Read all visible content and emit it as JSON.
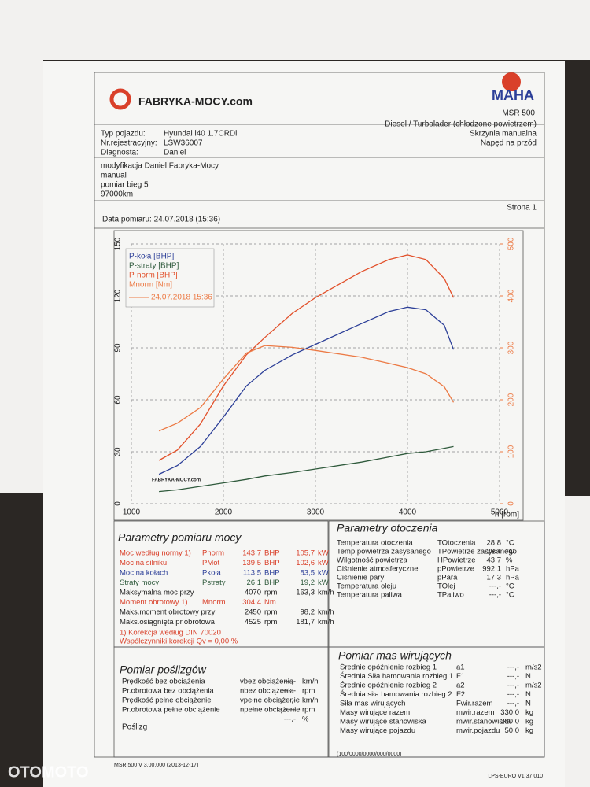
{
  "header": {
    "logo": "FABRYKA-MOCY.com",
    "brand": "MAHA",
    "model": "MSR 500"
  },
  "vehicle": {
    "rows": [
      {
        "label": "Typ pojazdu:",
        "value": "Hyundai i40 1.7CRDi"
      },
      {
        "label": "Nr.rejestracyjny:",
        "value": "LSW36007"
      },
      {
        "label": "Diagnosta:",
        "value": "Daniel"
      }
    ],
    "details": [
      "Diesel / Turbolader (chłodzone powietrzem)",
      "Skrzynia manualna",
      "Napęd na przód"
    ]
  },
  "notes": [
    "modyfikacja Daniel Fabryka-Mocy",
    "manual",
    "pomiar bieg 5",
    "97000km"
  ],
  "page": "Strona 1",
  "date": "Data pomiaru: 24.07.2018 (15:36)",
  "chart_data": {
    "type": "line",
    "xlabel": "n [rpm]",
    "x": [
      1300,
      1500,
      1750,
      2000,
      2250,
      2450,
      2750,
      3000,
      3500,
      3800,
      4000,
      4200,
      4400,
      4500
    ],
    "xlim": [
      1000,
      5000
    ],
    "xticks": [
      1000,
      2000,
      3000,
      4000,
      5000
    ],
    "ylim": [
      0,
      150
    ],
    "yticks": [
      0,
      30,
      60,
      90,
      120,
      150
    ],
    "y2lim": [
      0,
      500
    ],
    "y2ticks": [
      0,
      100,
      200,
      300,
      400,
      500
    ],
    "grid": true,
    "legend": "upper left",
    "legend_note": "24.07.2018 15:36",
    "series": [
      {
        "name": "P-koła [BHP]",
        "color": "#2c3f98",
        "values": [
          17,
          22,
          33,
          50,
          68,
          77,
          86,
          92,
          104,
          111,
          113.5,
          112,
          103,
          89
        ]
      },
      {
        "name": "P-straty [BHP]",
        "color": "#2f5a3c",
        "values": [
          7,
          8,
          10,
          12,
          14,
          16,
          18,
          20,
          24,
          27,
          29,
          30,
          32,
          33
        ]
      },
      {
        "name": "P-norm [BHP]",
        "color": "#e2502a",
        "values": [
          25,
          31,
          46,
          68,
          86,
          96,
          110,
          119,
          134,
          141,
          143.7,
          141,
          130,
          119
        ]
      },
      {
        "name": "Mnorm [Nm]",
        "color": "#ec7a45",
        "axis": "y2",
        "values": [
          140,
          155,
          185,
          240,
          290,
          304.4,
          301,
          295,
          282,
          270,
          262,
          250,
          225,
          195
        ]
      }
    ]
  },
  "power": {
    "title": "Parametry pomiaru mocy",
    "rows": [
      {
        "label": "Moc według normy 1)",
        "symbol": "Pnorm",
        "value": "143,7",
        "unit": "BHP",
        "value2": "105,7",
        "unit2": "kW",
        "color": "#d9402a"
      },
      {
        "label": "Moc na silniku",
        "symbol": "PMot",
        "value": "139,5",
        "unit": "BHP",
        "value2": "102,6",
        "unit2": "kW",
        "color": "#d9402a"
      },
      {
        "label": "Moc na kołach",
        "symbol": "Pkoła",
        "value": "113,5",
        "unit": "BHP",
        "value2": "83,5",
        "unit2": "kW",
        "color": "#2c3f98"
      },
      {
        "label": "Straty mocy",
        "symbol": "Pstraty",
        "value": "26,1",
        "unit": "BHP",
        "value2": "19,2",
        "unit2": "kW",
        "color": "#2f5a3c"
      },
      {
        "label": "Maksymalna moc przy",
        "value": "4070",
        "unit": "rpm",
        "value2": "163,3",
        "unit2": "km/h",
        "color": "#222222"
      },
      {
        "label": "Moment obrotowy 1)",
        "symbol": "Mnorm",
        "value": "304,4",
        "unit": "Nm",
        "color": "#d9402a"
      },
      {
        "label": "Maks.moment obrotowy przy",
        "value": "2450",
        "unit": "rpm",
        "value2": "98,2",
        "unit2": "km/h",
        "color": "#222222"
      },
      {
        "label": "Maks.osiągnięta pr.obrotowa",
        "value": "4525",
        "unit": "rpm",
        "value2": "181,7",
        "unit2": "km/h",
        "color": "#222222"
      }
    ],
    "footnotes": [
      "1) Korekcja według DIN 70020",
      "Współczynniki korekcji Qv = 0,00 %"
    ]
  },
  "ambient": {
    "title": "Parametry otoczenia",
    "rows": [
      {
        "label": "Temperatura otoczenia",
        "symbol": "TOtoczenia",
        "value": "28,8",
        "unit": "°C"
      },
      {
        "label": "Temp.powietrza zasysanego",
        "symbol": "TPowietrze zasysanego",
        "value": "29,4",
        "unit": "°C"
      },
      {
        "label": "Wilgotność powietrza",
        "symbol": "HPowietrze",
        "value": "43,7",
        "unit": "%"
      },
      {
        "label": "Ciśnienie atmosferyczne",
        "symbol": "pPowietrze",
        "value": "992,1",
        "unit": "hPa"
      },
      {
        "label": "Ciśnienie pary",
        "symbol": "pPara",
        "value": "17,3",
        "unit": "hPa"
      },
      {
        "label": "Temperatura oleju",
        "symbol": "TOlej",
        "value": "---,-",
        "unit": "°C"
      },
      {
        "label": "Temperatura paliwa",
        "symbol": "TPaliwo",
        "value": "---,-",
        "unit": "°C"
      }
    ]
  },
  "slip": {
    "title": "Pomiar poślizgów",
    "rows": [
      {
        "label": "Prędkość bez obciążenia",
        "symbol": "vbez obciążenia",
        "value": "---,-",
        "unit": "km/h"
      },
      {
        "label": "Pr.obrotowa bez obciążenia",
        "symbol": "nbez obciążenia",
        "value": "-----",
        "unit": "rpm"
      },
      {
        "label": "Prędkość pełne obciążenie",
        "symbol": "vpełne obciążenie",
        "value": "---,-",
        "unit": "km/h"
      },
      {
        "label": "Pr.obrotowa pełne obciążenie",
        "symbol": "npełne obciążenie",
        "value": "-----",
        "unit": "rpm"
      },
      {
        "value": "---,-",
        "unit": "%"
      }
    ],
    "footer": "Poślizg"
  },
  "masses": {
    "title": "Pomiar mas wirujących",
    "rows": [
      {
        "label": "Średnie opóźnienie rozbieg 1",
        "symbol": "a1",
        "value": "---,-",
        "unit": "m/s2"
      },
      {
        "label": "Średnia Siła hamowania rozbieg 1",
        "symbol": "F1",
        "value": "---,-",
        "unit": "N"
      },
      {
        "label": "Średnie opóźnienie rozbieg 2",
        "symbol": "a2",
        "value": "---,-",
        "unit": "m/s2"
      },
      {
        "label": "Średnia siła hamowania rozbieg 2",
        "symbol": "F2",
        "value": "---,-",
        "unit": "N"
      },
      {
        "label": "Siła mas wirujących",
        "symbol": "Fwir.razem",
        "value": "---,-",
        "unit": "N"
      },
      {
        "label": "Masy wirujące razem",
        "symbol": "mwir.razem",
        "value": "330,0",
        "unit": "kg"
      },
      {
        "label": "Masy wirujące stanowiska",
        "symbol": "mwir.stanowiska",
        "value": "280,0",
        "unit": "kg"
      },
      {
        "label": "Masy wirujące pojazdu",
        "symbol": "mwir.pojazdu",
        "value": "50,0",
        "unit": "kg"
      }
    ]
  },
  "footer": {
    "left": "MSR 500 V 3.00.000 (2013-12-17)",
    "center": "(100/0000/0000/000/0000)",
    "right": "LPS-EURO V1.37.010"
  },
  "watermark": "OTOMOTO"
}
